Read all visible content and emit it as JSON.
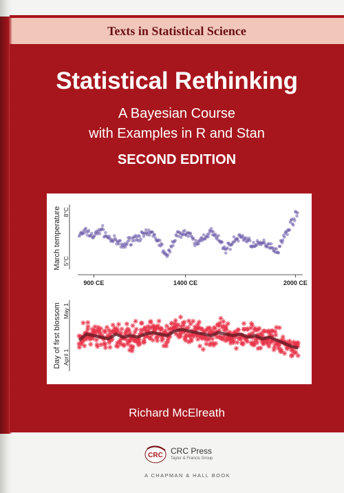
{
  "cover": {
    "series": "Texts in Statistical Science",
    "title": "Statistical Rethinking",
    "subtitle_line1": "A Bayesian Course",
    "subtitle_line2": "with Examples in R and Stan",
    "edition": "SECOND EDITION",
    "author": "Richard McElreath",
    "publisher_name": "CRC Press",
    "publisher_group": "Taylor & Francis Group",
    "imprint": "A CHAPMAN & HALL BOOK",
    "logo_text": "CRC"
  },
  "colors": {
    "red": "#a8161d",
    "series_band": "#f1c7b9",
    "temperature_points": "#6b5aa8",
    "blossom_points": "#e8344a",
    "blossom_trend": "#5a1a22"
  },
  "chart_data": [
    {
      "type": "scatter",
      "ylabel": "March temperature",
      "y_ticks": [
        "5°C",
        "8°C"
      ],
      "ylim": [
        4.5,
        8.3
      ],
      "xlim": [
        812,
        2040
      ],
      "x_ticks": [
        "900 CE",
        "1400 CE",
        "2000 CE"
      ],
      "x": [
        820,
        860,
        900,
        940,
        980,
        1020,
        1060,
        1100,
        1140,
        1180,
        1220,
        1260,
        1300,
        1340,
        1380,
        1420,
        1460,
        1500,
        1540,
        1580,
        1620,
        1660,
        1700,
        1740,
        1780,
        1820,
        1860,
        1900,
        1940,
        1980,
        2015
      ],
      "values": [
        6.6,
        6.8,
        6.5,
        7.0,
        6.4,
        6.2,
        5.9,
        6.3,
        6.5,
        6.6,
        6.7,
        6.1,
        5.2,
        6.4,
        6.8,
        6.6,
        6.0,
        6.5,
        6.8,
        6.3,
        5.7,
        6.2,
        6.5,
        6.3,
        5.9,
        6.1,
        6.0,
        5.6,
        6.5,
        7.4,
        8.0
      ]
    },
    {
      "type": "scatter",
      "ylabel": "Day of first blossom",
      "y_ticks": [
        "April 1",
        "May 1"
      ],
      "ylim": [
        82,
        128
      ],
      "xlim": [
        812,
        2040
      ],
      "x": [
        820,
        860,
        900,
        940,
        980,
        1020,
        1060,
        1100,
        1140,
        1180,
        1220,
        1260,
        1300,
        1340,
        1380,
        1420,
        1460,
        1500,
        1540,
        1580,
        1620,
        1660,
        1700,
        1740,
        1780,
        1820,
        1860,
        1900,
        1940,
        1980,
        2015
      ],
      "values": [
        102,
        106,
        105,
        104,
        103,
        106,
        104,
        105,
        104,
        106,
        107,
        106,
        105,
        108,
        109,
        108,
        107,
        106,
        105,
        107,
        106,
        105,
        106,
        104,
        105,
        103,
        104,
        102,
        100,
        98,
        97
      ]
    }
  ]
}
